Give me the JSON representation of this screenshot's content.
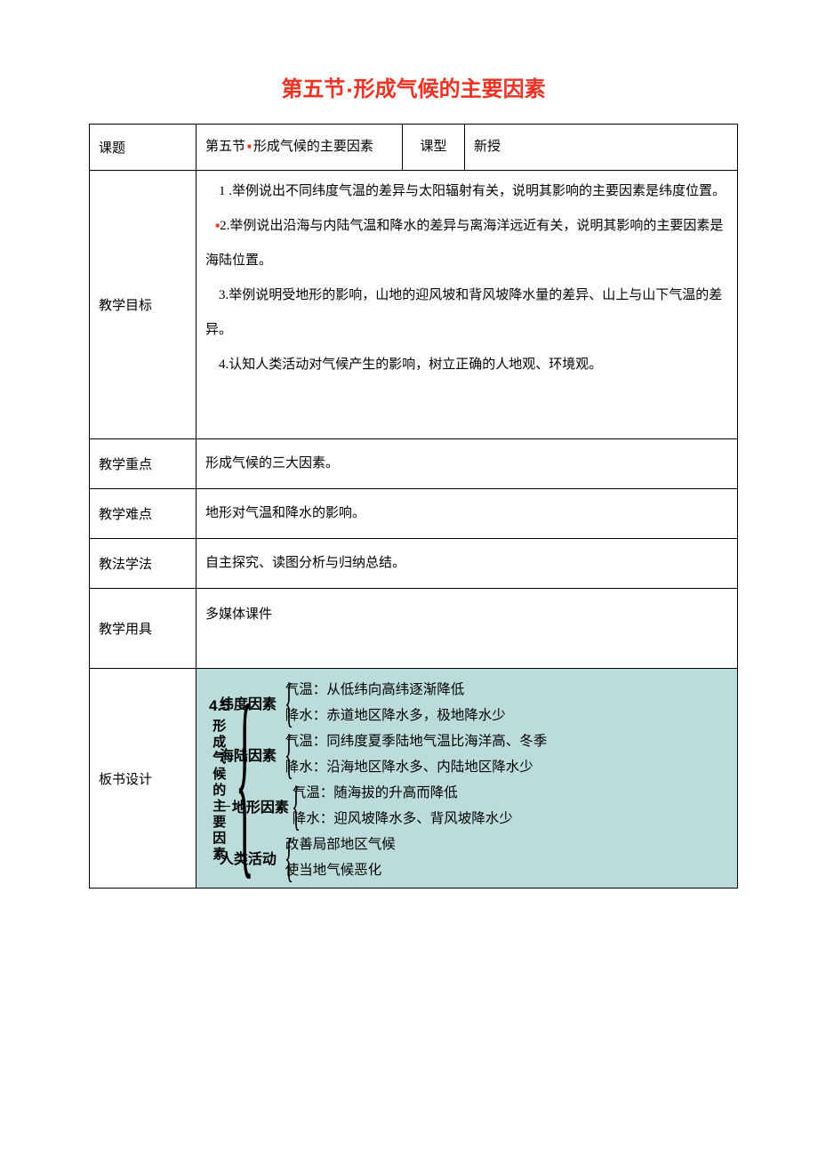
{
  "title_pre": "第五节",
  "title_post": "形成气候的主要因素",
  "labels": {
    "topic": "课题",
    "type": "课型",
    "goal": "教学目标",
    "key": "教学重点",
    "diff": "教学难点",
    "method": "教法学法",
    "tools": "教学用具",
    "board": "板书设计"
  },
  "topic_pre": "第五节",
  "topic_post": "形成气候的主要因素",
  "lesson_type": "新授",
  "goals": {
    "g1": "1 .举例说出不同纬度气温的差异与太阳辐射有关，说明其影响的主要因素是纬度位置。",
    "g2_post": "2.举例说出沿海与内陆气温和降水的差异与离海洋远近有关，说明其影响的主要因素是海陆位置。",
    "g3": "3.举例说明受地形的影响，山地的迎风坡和背风坡降水量的差异、山上与山下气温的差异。",
    "g4": "4.认知人类活动对气候产生的影响，树立正确的人地观、环境观。"
  },
  "key_point": "形成气候的三大因素。",
  "difficulty": "地形对气温和降水的影响。",
  "methods": "自主探究、读图分析与归纳总结。",
  "tools": "多媒体课件",
  "diagram": {
    "background_color": "#bcdcdc",
    "text_color": "#000000",
    "section_num": "4.5",
    "section_title": "形成气候的主要因素",
    "factors": {
      "f1": {
        "name": "纬度因素",
        "a": "气温：从低纬向高纬逐渐降低",
        "b": "降水：赤道地区降水多，极地降水少"
      },
      "f2": {
        "name": "海陆因素",
        "a": "气温：同纬度夏季陆地气温比海洋高、冬季",
        "b": "降水：沿海地区降水多、内陆地区降水少"
      },
      "f3": {
        "name": "地形因素",
        "a": "气温：随海拔的升高而降低",
        "b": "降水：迎风坡降水多、背风坡降水少"
      },
      "f4": {
        "name": "人类活动",
        "a": "改善局部地区气候",
        "b": "使当地气候恶化"
      }
    }
  }
}
